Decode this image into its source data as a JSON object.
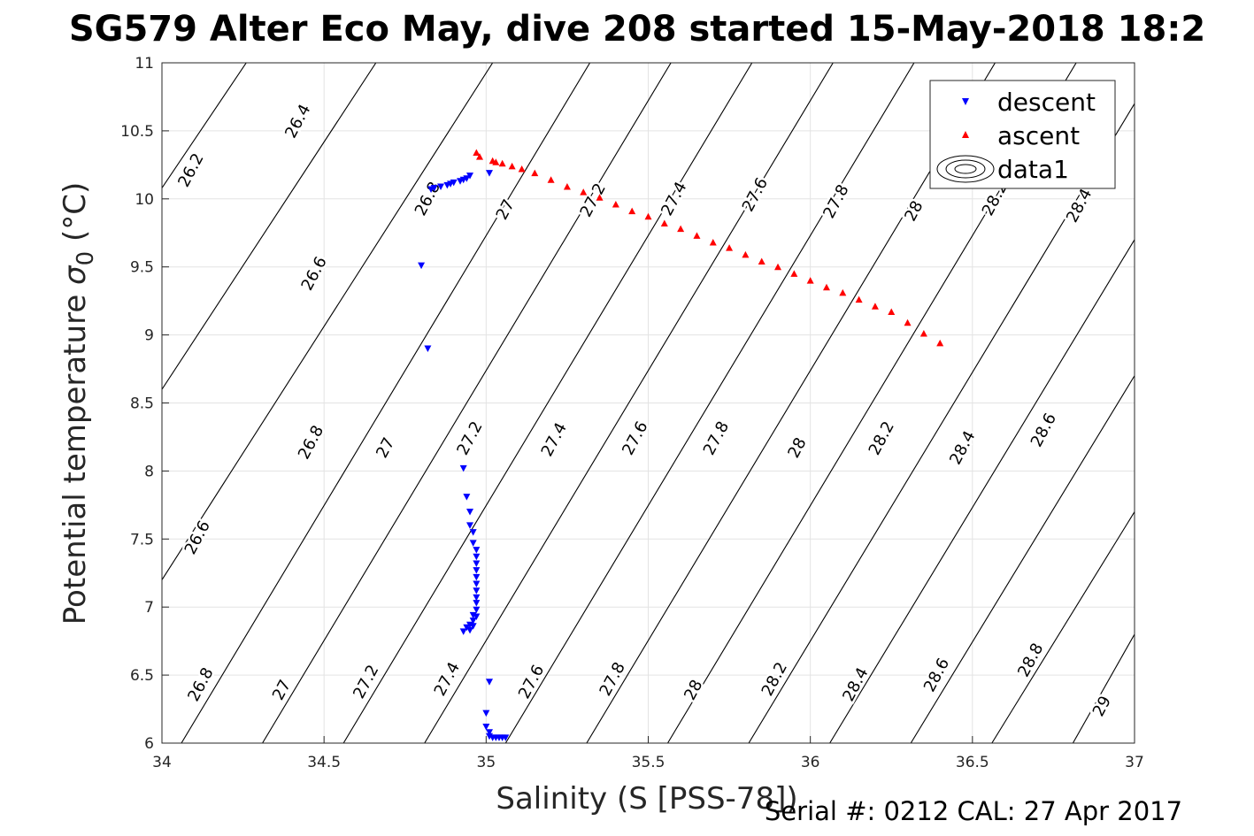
{
  "title": "SG579 Alter Eco May, dive 208 started 15-May-2018 18:2",
  "footer": "Serial #: 0212  CAL: 27 Apr 2017",
  "chart_data": {
    "type": "scatter",
    "xlabel": "Salinity (S [PSS-78])",
    "ylabel_main": "Potential temperature ",
    "ylabel_sigma": "σ",
    "ylabel_sub": "0",
    "ylabel_unit": " (°C)",
    "xlim": [
      34,
      37
    ],
    "ylim": [
      6,
      11
    ],
    "grid": true,
    "xticks": [
      {
        "v": 34,
        "t": "34"
      },
      {
        "v": 34.5,
        "t": "34.5"
      },
      {
        "v": 35,
        "t": "35"
      },
      {
        "v": 35.5,
        "t": "35.5"
      },
      {
        "v": 36,
        "t": "36"
      },
      {
        "v": 36.5,
        "t": "36.5"
      },
      {
        "v": 37,
        "t": "37"
      }
    ],
    "yticks": [
      {
        "v": 6,
        "t": "6"
      },
      {
        "v": 6.5,
        "t": "6.5"
      },
      {
        "v": 7,
        "t": "7"
      },
      {
        "v": 7.5,
        "t": "7.5"
      },
      {
        "v": 8,
        "t": "8"
      },
      {
        "v": 8.5,
        "t": "8.5"
      },
      {
        "v": 9,
        "t": "9"
      },
      {
        "v": 9.5,
        "t": "9.5"
      },
      {
        "v": 10,
        "t": "10"
      },
      {
        "v": 10.5,
        "t": "10.5"
      },
      {
        "v": 11,
        "t": "11"
      }
    ],
    "legend": {
      "position": "top-right",
      "items": [
        {
          "label": "descent",
          "marker": "triangle-down",
          "color": "#0000ff"
        },
        {
          "label": "ascent",
          "marker": "triangle-up",
          "color": "#ff0000"
        },
        {
          "label": "data1",
          "marker": "contour",
          "color": "#000000"
        }
      ]
    },
    "contour_lines": [
      {
        "x1": 34.0,
        "y1": 10.08,
        "x2": 34.26,
        "y2": 11.0
      },
      {
        "x1": 34.0,
        "y1": 8.6,
        "x2": 34.66,
        "y2": 11.0
      },
      {
        "x1": 34.0,
        "y1": 7.2,
        "x2": 35.02,
        "y2": 11.0
      },
      {
        "x1": 34.06,
        "y1": 6.0,
        "x2": 35.32,
        "y2": 11.0
      },
      {
        "x1": 34.31,
        "y1": 6.0,
        "x2": 35.57,
        "y2": 11.0
      },
      {
        "x1": 34.56,
        "y1": 6.0,
        "x2": 35.82,
        "y2": 11.0
      },
      {
        "x1": 34.81,
        "y1": 6.0,
        "x2": 36.07,
        "y2": 11.0
      },
      {
        "x1": 35.06,
        "y1": 6.0,
        "x2": 36.32,
        "y2": 11.0
      },
      {
        "x1": 35.31,
        "y1": 6.0,
        "x2": 36.57,
        "y2": 11.0
      },
      {
        "x1": 35.56,
        "y1": 6.0,
        "x2": 36.82,
        "y2": 11.0
      },
      {
        "x1": 35.81,
        "y1": 6.0,
        "x2": 37.0,
        "y2": 10.7
      },
      {
        "x1": 36.06,
        "y1": 6.0,
        "x2": 37.0,
        "y2": 9.7
      },
      {
        "x1": 36.31,
        "y1": 6.0,
        "x2": 37.0,
        "y2": 8.7
      },
      {
        "x1": 36.56,
        "y1": 6.0,
        "x2": 37.0,
        "y2": 7.7
      },
      {
        "x1": 36.81,
        "y1": 6.0,
        "x2": 37.0,
        "y2": 6.8
      }
    ],
    "contour_labels": [
      {
        "x": 34.09,
        "y": 10.21,
        "t": "26.2"
      },
      {
        "x": 34.42,
        "y": 10.57,
        "t": "26.4"
      },
      {
        "x": 34.47,
        "y": 9.45,
        "t": "26.6"
      },
      {
        "x": 34.82,
        "y": 10.0,
        "t": "26.8"
      },
      {
        "x": 35.06,
        "y": 9.92,
        "t": "27"
      },
      {
        "x": 35.33,
        "y": 9.99,
        "t": "27.2"
      },
      {
        "x": 35.58,
        "y": 10.0,
        "t": "27.4"
      },
      {
        "x": 35.83,
        "y": 10.03,
        "t": "27.6"
      },
      {
        "x": 36.08,
        "y": 9.98,
        "t": "27.8"
      },
      {
        "x": 36.32,
        "y": 9.91,
        "t": "28"
      },
      {
        "x": 36.57,
        "y": 10.0,
        "t": "28.2"
      },
      {
        "x": 36.83,
        "y": 9.95,
        "t": "28.4"
      },
      {
        "x": 34.11,
        "y": 7.51,
        "t": "26.6"
      },
      {
        "x": 34.46,
        "y": 8.21,
        "t": "26.8"
      },
      {
        "x": 34.69,
        "y": 8.17,
        "t": "27"
      },
      {
        "x": 34.95,
        "y": 8.24,
        "t": "27.2"
      },
      {
        "x": 35.21,
        "y": 8.23,
        "t": "27.4"
      },
      {
        "x": 35.46,
        "y": 8.24,
        "t": "27.6"
      },
      {
        "x": 35.71,
        "y": 8.24,
        "t": "27.8"
      },
      {
        "x": 35.96,
        "y": 8.17,
        "t": "28"
      },
      {
        "x": 36.22,
        "y": 8.24,
        "t": "28.2"
      },
      {
        "x": 36.47,
        "y": 8.17,
        "t": "28.4"
      },
      {
        "x": 36.72,
        "y": 8.3,
        "t": "28.6"
      },
      {
        "x": 34.12,
        "y": 6.43,
        "t": "26.8"
      },
      {
        "x": 34.37,
        "y": 6.39,
        "t": "27"
      },
      {
        "x": 34.63,
        "y": 6.45,
        "t": "27.2"
      },
      {
        "x": 34.88,
        "y": 6.47,
        "t": "27.4"
      },
      {
        "x": 35.14,
        "y": 6.45,
        "t": "27.6"
      },
      {
        "x": 35.39,
        "y": 6.47,
        "t": "27.8"
      },
      {
        "x": 35.64,
        "y": 6.39,
        "t": "28"
      },
      {
        "x": 35.89,
        "y": 6.47,
        "t": "28.2"
      },
      {
        "x": 36.14,
        "y": 6.43,
        "t": "28.4"
      },
      {
        "x": 36.39,
        "y": 6.5,
        "t": "28.6"
      },
      {
        "x": 36.68,
        "y": 6.61,
        "t": "28.8"
      },
      {
        "x": 36.9,
        "y": 6.27,
        "t": "29"
      }
    ],
    "series": [
      {
        "name": "descent",
        "marker": "triangle-down",
        "color": "#0000ff",
        "x": [
          35.01,
          34.95,
          34.94,
          34.93,
          34.92,
          34.9,
          34.89,
          34.88,
          34.86,
          34.84,
          34.83,
          34.8,
          34.82,
          34.93,
          34.94,
          34.95,
          34.95,
          34.96,
          34.96,
          34.97,
          34.97,
          34.97,
          34.97,
          34.97,
          34.97,
          34.97,
          34.97,
          34.97,
          34.97,
          34.96,
          34.96,
          34.95,
          34.94,
          34.93,
          34.95,
          34.96,
          34.97,
          35.01,
          35.0,
          35.0,
          35.01,
          35.01,
          35.02,
          35.03,
          35.04,
          35.05,
          35.06
        ],
        "y": [
          10.19,
          10.17,
          10.15,
          10.14,
          10.13,
          10.12,
          10.11,
          10.1,
          10.09,
          10.08,
          10.07,
          9.51,
          8.9,
          8.02,
          7.81,
          7.7,
          7.6,
          7.55,
          7.47,
          7.42,
          7.37,
          7.32,
          7.27,
          7.22,
          7.17,
          7.12,
          7.07,
          7.03,
          6.98,
          6.94,
          6.9,
          6.87,
          6.85,
          6.82,
          6.83,
          6.86,
          6.93,
          6.45,
          6.22,
          6.12,
          6.08,
          6.05,
          6.04,
          6.04,
          6.04,
          6.04,
          6.04
        ]
      },
      {
        "name": "ascent",
        "marker": "triangle-up",
        "color": "#ff0000",
        "x": [
          34.97,
          34.98,
          35.02,
          35.03,
          35.05,
          35.08,
          35.11,
          35.15,
          35.2,
          35.25,
          35.3,
          35.35,
          35.4,
          35.45,
          35.5,
          35.55,
          35.6,
          35.65,
          35.7,
          35.75,
          35.8,
          35.85,
          35.9,
          35.95,
          36.0,
          36.05,
          36.1,
          36.15,
          36.2,
          36.25,
          36.3,
          36.35,
          36.4
        ],
        "y": [
          10.34,
          10.31,
          10.28,
          10.27,
          10.26,
          10.24,
          10.22,
          10.19,
          10.14,
          10.09,
          10.05,
          10.01,
          9.96,
          9.91,
          9.87,
          9.82,
          9.78,
          9.73,
          9.68,
          9.64,
          9.59,
          9.54,
          9.5,
          9.45,
          9.4,
          9.35,
          9.31,
          9.26,
          9.21,
          9.17,
          9.09,
          9.01,
          8.94
        ]
      }
    ]
  }
}
